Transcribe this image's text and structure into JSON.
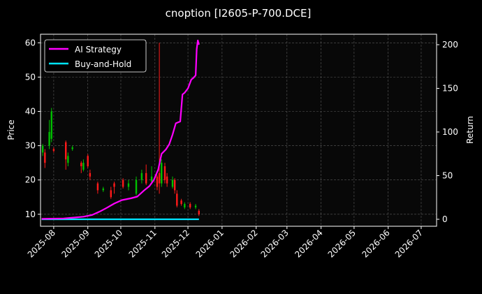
{
  "chart_data": {
    "type": "line",
    "title": "cnoption [I2605-P-700.DCE]",
    "ylabel_left": "Price",
    "ylabel_right": "Return",
    "xlim": [
      "2025-07-20",
      "2026-07-15"
    ],
    "ylim_left": [
      6.5,
      62.5
    ],
    "ylim_right": [
      -8,
      212
    ],
    "x_ticks": [
      "2025-08",
      "2025-09",
      "2025-10",
      "2025-11",
      "2025-12",
      "2026-01",
      "2026-02",
      "2026-03",
      "2026-04",
      "2026-05",
      "2026-06",
      "2026-07"
    ],
    "y_ticks_left": [
      10,
      20,
      30,
      40,
      50,
      60
    ],
    "y_ticks_right": [
      0,
      50,
      100,
      150,
      200
    ],
    "grid": true,
    "legend": "top-left",
    "colors": {
      "background": "#080808",
      "up": "#00c000",
      "down": "#ff1a1a",
      "ai_strategy": "#ff00ff",
      "buy_and_hold": "#00e5ff"
    },
    "series": [
      {
        "name": "AI Strategy",
        "axis": "right",
        "points": [
          [
            "2025-07-21",
            0.5
          ],
          [
            "2025-07-31",
            0.7
          ],
          [
            "2025-08-10",
            1
          ],
          [
            "2025-08-20",
            2
          ],
          [
            "2025-08-28",
            3
          ],
          [
            "2025-09-05",
            5
          ],
          [
            "2025-09-12",
            9
          ],
          [
            "2025-09-18",
            13
          ],
          [
            "2025-09-25",
            18
          ],
          [
            "2025-10-02",
            22
          ],
          [
            "2025-10-10",
            24
          ],
          [
            "2025-10-16",
            26
          ],
          [
            "2025-10-22",
            33
          ],
          [
            "2025-10-27",
            38
          ],
          [
            "2025-10-31",
            45
          ],
          [
            "2025-11-04",
            57
          ],
          [
            "2025-11-07",
            75
          ],
          [
            "2025-11-11",
            80
          ],
          [
            "2025-11-14",
            86
          ],
          [
            "2025-11-17",
            97
          ],
          [
            "2025-11-20",
            110
          ],
          [
            "2025-11-24",
            112
          ],
          [
            "2025-11-26",
            143
          ],
          [
            "2025-11-28",
            145
          ],
          [
            "2025-12-01",
            150
          ],
          [
            "2025-12-04",
            160
          ],
          [
            "2025-12-06",
            162
          ],
          [
            "2025-12-08",
            165
          ],
          [
            "2025-12-09",
            195
          ],
          [
            "2025-12-10",
            205
          ],
          [
            "2025-12-11",
            200
          ]
        ]
      },
      {
        "name": "Buy-and-Hold",
        "axis": "right",
        "points": [
          [
            "2025-07-21",
            0
          ],
          [
            "2025-10-01",
            0
          ],
          [
            "2025-12-11",
            0
          ]
        ]
      }
    ],
    "candles": [
      [
        "2025-07-22",
        28,
        30,
        30.5,
        27
      ],
      [
        "2025-07-24",
        28,
        25,
        29,
        23.5
      ],
      [
        "2025-07-28",
        30,
        34,
        37.5,
        29
      ],
      [
        "2025-07-30",
        32,
        40,
        41,
        31
      ],
      [
        "2025-08-01",
        29,
        28.5,
        29.5,
        28
      ],
      [
        "2025-08-12",
        31,
        26,
        31.5,
        23
      ],
      [
        "2025-08-14",
        25,
        27,
        28,
        24
      ],
      [
        "2025-08-18",
        29,
        29.5,
        30,
        28.5
      ],
      [
        "2025-08-26",
        25,
        24,
        25.5,
        22
      ],
      [
        "2025-08-28",
        23,
        25,
        26,
        22.5
      ],
      [
        "2025-09-01",
        27,
        24,
        27.5,
        23.5
      ],
      [
        "2025-09-03",
        22,
        21,
        23,
        20
      ],
      [
        "2025-09-10",
        19,
        17,
        19.5,
        16
      ],
      [
        "2025-09-15",
        17,
        17.5,
        18,
        16.5
      ],
      [
        "2025-09-22",
        17,
        15,
        18,
        14.5
      ],
      [
        "2025-09-25",
        19,
        18,
        19.5,
        16
      ],
      [
        "2025-10-03",
        20,
        18,
        20.5,
        17.5
      ],
      [
        "2025-10-08",
        18,
        19,
        20,
        17
      ],
      [
        "2025-10-15",
        16,
        20,
        21,
        15.5
      ],
      [
        "2025-10-20",
        20,
        22,
        23,
        19
      ],
      [
        "2025-10-24",
        22,
        19,
        24.5,
        18.5
      ],
      [
        "2025-10-29",
        19.5,
        21,
        24,
        19
      ],
      [
        "2025-11-03",
        21,
        18,
        21.5,
        17
      ],
      [
        "2025-11-05",
        22,
        19,
        60,
        16
      ],
      [
        "2025-11-07",
        19,
        25,
        26,
        18
      ],
      [
        "2025-11-10",
        24,
        20,
        25,
        19
      ],
      [
        "2025-11-12",
        21,
        19,
        22,
        18
      ],
      [
        "2025-11-17",
        18,
        20,
        21,
        17.5
      ],
      [
        "2025-11-19",
        20,
        17,
        20.5,
        16
      ],
      [
        "2025-11-21",
        16,
        12.5,
        17,
        12
      ],
      [
        "2025-11-25",
        14,
        13,
        14.5,
        12.5
      ],
      [
        "2025-11-28",
        12,
        13,
        13.5,
        11.5
      ],
      [
        "2025-12-03",
        13,
        12,
        13.5,
        11.5
      ],
      [
        "2025-12-08",
        12,
        12.5,
        13,
        11.5
      ],
      [
        "2025-12-11",
        11,
        10,
        11.5,
        9.5
      ]
    ]
  }
}
